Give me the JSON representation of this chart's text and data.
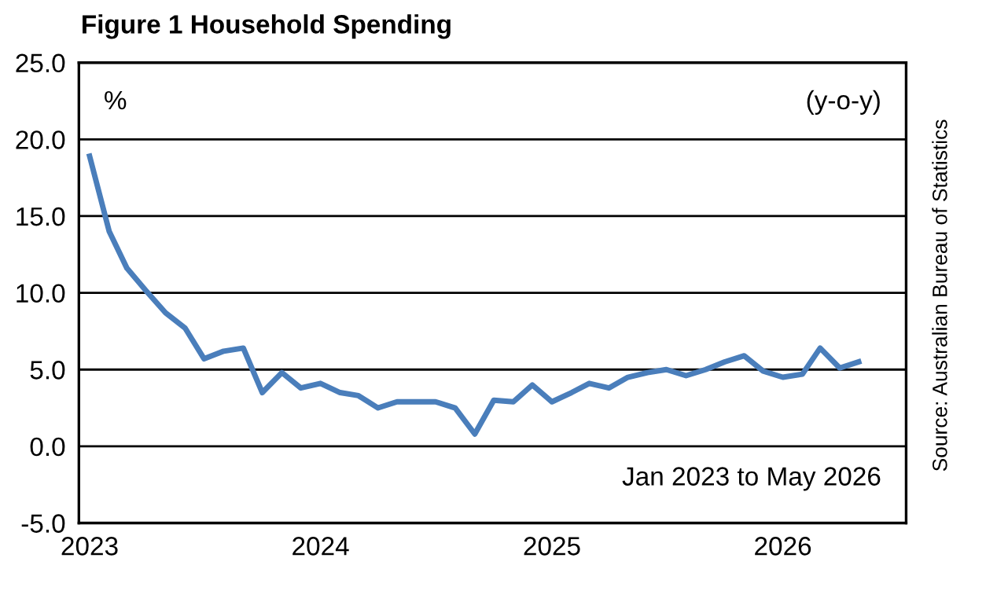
{
  "chart_data": {
    "type": "line",
    "title": "Figure 1 Household Spending",
    "x": [
      "2023-01",
      "2023-02",
      "2023-03",
      "2023-04",
      "2023-05",
      "2023-06",
      "2023-07",
      "2023-08",
      "2023-09",
      "2023-10",
      "2023-11",
      "2023-12",
      "2024-01",
      "2024-02",
      "2024-03",
      "2024-04",
      "2024-05",
      "2024-06",
      "2024-07",
      "2024-08",
      "2024-09",
      "2024-10",
      "2024-11",
      "2024-12",
      "2025-01",
      "2025-02",
      "2025-03",
      "2025-04",
      "2025-05",
      "2025-06",
      "2025-07",
      "2025-08",
      "2025-09",
      "2025-10",
      "2025-11",
      "2025-12",
      "2026-01",
      "2026-02",
      "2026-03",
      "2026-04",
      "2026-05"
    ],
    "series": [
      {
        "color": "#4a7ebb",
        "values": [
          18.9,
          14.0,
          11.6,
          10.1,
          8.7,
          7.7,
          5.7,
          6.2,
          6.4,
          3.5,
          4.8,
          3.8,
          4.1,
          3.5,
          3.3,
          2.5,
          2.9,
          2.9,
          2.9,
          2.5,
          0.8,
          3.0,
          2.9,
          4.0,
          2.9,
          3.5,
          4.1,
          3.8,
          4.5,
          4.8,
          5.0,
          4.6,
          5.0,
          5.5,
          5.9,
          4.9,
          4.5,
          4.7,
          6.4,
          5.1,
          5.5
        ]
      }
    ],
    "xlim": [
      "2022-12-15",
      "2026-07-15"
    ],
    "xticks": [
      {
        "value": "2023-01-01",
        "label": "2023"
      },
      {
        "value": "2024-01-01",
        "label": "2024"
      },
      {
        "value": "2025-01-01",
        "label": "2025"
      },
      {
        "value": "2026-01-01",
        "label": "2026"
      }
    ],
    "ylim": [
      -5,
      25
    ],
    "yticks": [
      {
        "value": -5,
        "label": "-5.0"
      },
      {
        "value": 0,
        "label": "0.0"
      },
      {
        "value": 5,
        "label": "5.0"
      },
      {
        "value": 10,
        "label": "10.0"
      },
      {
        "value": 15,
        "label": "15.0"
      },
      {
        "value": 20,
        "label": "20.0"
      },
      {
        "value": 25,
        "label": "25.0"
      }
    ],
    "grid": "y",
    "marker": "none",
    "line_style": "solid",
    "annotations": [
      "%",
      "(y-o-y)",
      "Jan 2023 to May 2026",
      "Source: Australian Bureau of Statistics"
    ]
  }
}
